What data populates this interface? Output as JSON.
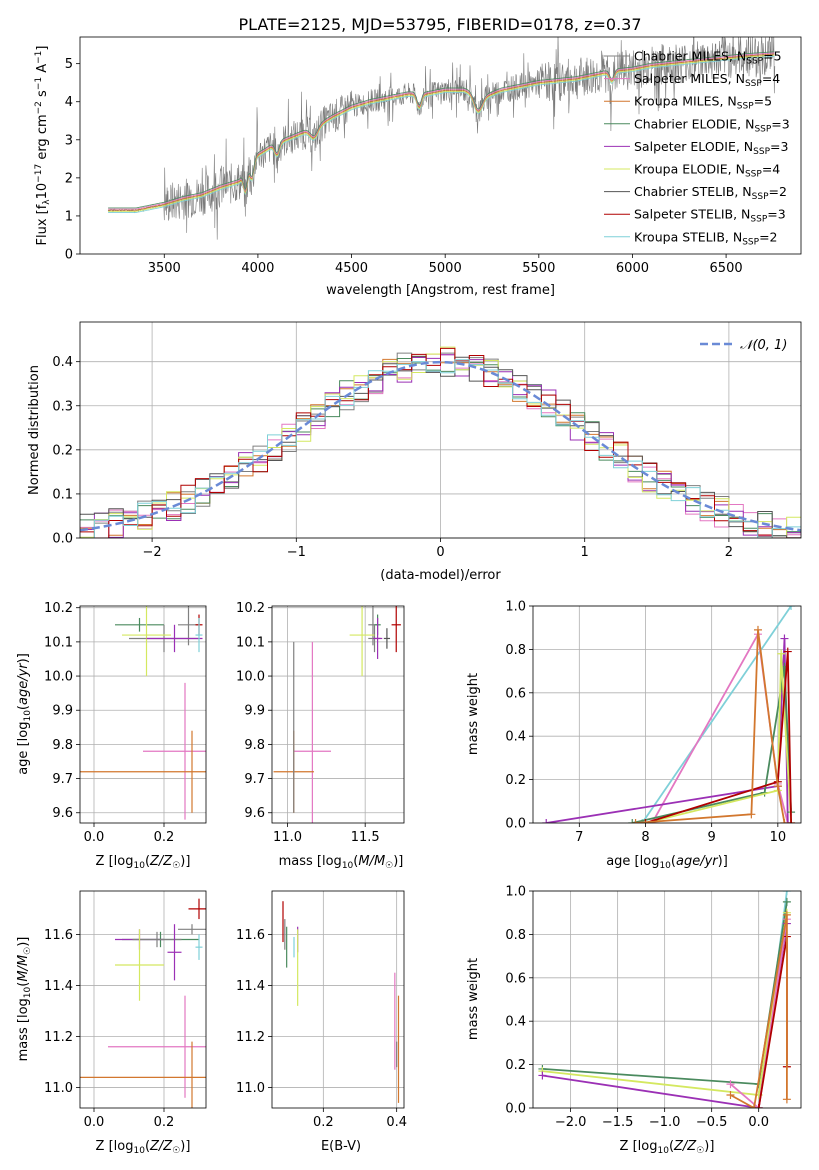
{
  "figure": {
    "title": "PLATE=2125, MJD=53795, FIBERID=0178, z=0.37"
  },
  "colors": {
    "Chabrier MILES": "#808080",
    "Salpeter MILES": "#e377c2",
    "Kroupa MILES": "#d2772e",
    "Chabrier ELODIE": "#4a8a5e",
    "Salpeter ELODIE": "#9b30b5",
    "Kroupa ELODIE": "#d4e860",
    "Chabrier STELIB": "#555555",
    "Salpeter STELIB": "#b00000",
    "Kroupa STELIB": "#7fd0d8",
    "gauss": "#6a8ad6"
  },
  "chart_data": [
    {
      "id": "spectrum",
      "type": "line",
      "title": "PLATE=2125, MJD=53795, FIBERID=0178, z=0.37",
      "xlabel": "wavelength [Angstrom, rest frame]",
      "ylabel": "Flux [f_λ 10^-17 erg cm^-2 s^-1 A^-1]",
      "xlim": [
        3050,
        6900
      ],
      "ylim": [
        0,
        5.7
      ],
      "xticks": [
        3500,
        4000,
        4500,
        5000,
        5500,
        6000,
        6500
      ],
      "yticks": [
        0,
        1,
        2,
        3,
        4,
        5
      ],
      "legend_position": "top-right",
      "legend": [
        {
          "label": "Chabrier MILES, N",
          "sub": "SSP",
          "suffix": "=5",
          "color": "#808080"
        },
        {
          "label": "Salpeter MILES, N",
          "sub": "SSP",
          "suffix": "=4",
          "color": "#e377c2"
        },
        {
          "label": "Kroupa MILES, N",
          "sub": "SSP",
          "suffix": "=5",
          "color": "#d2772e"
        },
        {
          "label": "Chabrier ELODIE, N",
          "sub": "SSP",
          "suffix": "=3",
          "color": "#4a8a5e"
        },
        {
          "label": "Salpeter ELODIE, N",
          "sub": "SSP",
          "suffix": "=3",
          "color": "#9b30b5"
        },
        {
          "label": "Kroupa ELODIE, N",
          "sub": "SSP",
          "suffix": "=4",
          "color": "#d4e860"
        },
        {
          "label": "Chabrier STELIB, N",
          "sub": "SSP",
          "suffix": "=2",
          "color": "#555555"
        },
        {
          "label": "Salpeter STELIB, N",
          "sub": "SSP",
          "suffix": "=3",
          "color": "#b00000"
        },
        {
          "label": "Kroupa STELIB, N",
          "sub": "SSP",
          "suffix": "=2",
          "color": "#7fd0d8"
        }
      ],
      "continuum": {
        "x": [
          3200,
          3350,
          3500,
          3600,
          3700,
          3800,
          3900,
          4000,
          4100,
          4200,
          4300,
          4400,
          4500,
          4600,
          4700,
          4800,
          4900,
          5000,
          5100,
          5200,
          5300,
          5400,
          5500,
          5600,
          5700,
          5800,
          5900,
          6000,
          6100,
          6200,
          6300,
          6400,
          6500,
          6600,
          6750
        ],
        "y": [
          1.15,
          1.15,
          1.3,
          1.45,
          1.55,
          1.75,
          1.9,
          2.6,
          2.9,
          3.1,
          3.3,
          3.6,
          3.85,
          4.0,
          4.1,
          4.2,
          4.2,
          4.3,
          4.3,
          4.1,
          4.3,
          4.4,
          4.5,
          4.55,
          4.6,
          4.7,
          4.8,
          4.85,
          4.95,
          5.0,
          5.05,
          5.1,
          5.15,
          5.2,
          5.25
        ]
      }
    },
    {
      "id": "residuals",
      "type": "bar",
      "xlabel": "(data-model)/error",
      "ylabel": "Normed distribution",
      "xlim": [
        -2.5,
        2.5
      ],
      "ylim": [
        0,
        0.49
      ],
      "xticks": [
        -2,
        -1,
        0,
        1,
        2
      ],
      "yticks": [
        0.0,
        0.1,
        0.2,
        0.3,
        0.4
      ],
      "legend_position": "top-right",
      "legend_label": "𝒩(0, 1)",
      "bin_width": 0.1
    },
    {
      "id": "age_vs_Z",
      "type": "scatter",
      "xlabel": "Z [log10(Z/Z☉)]",
      "ylabel": "age [log10(age/yr)]",
      "xlim": [
        -0.04,
        0.32
      ],
      "ylim": [
        9.57,
        10.205
      ],
      "xticks": [
        0.0,
        0.2
      ],
      "yticks": [
        9.6,
        9.7,
        9.8,
        9.9,
        10.0,
        10.1,
        10.2
      ],
      "points": [
        {
          "x": 0.27,
          "y": 10.15,
          "xerr": 0.03,
          "yerr": 0.06,
          "color": "#808080"
        },
        {
          "x": 0.13,
          "y": 10.15,
          "xerr": 0.07,
          "yerr": 0.02,
          "color": "#4a8a5e"
        },
        {
          "x": 0.2,
          "y": 10.11,
          "xerr": 0.1,
          "yerr": 0.04,
          "color": "#808080"
        },
        {
          "x": 0.15,
          "y": 10.12,
          "xerr": 0.07,
          "yerr": 0.12,
          "color": "#d4e860"
        },
        {
          "x": 0.23,
          "y": 10.11,
          "xerr": 0.08,
          "yerr": 0.04,
          "color": "#9b30b5"
        },
        {
          "x": 0.3,
          "y": 10.15,
          "xerr": 0.01,
          "yerr": 0.03,
          "color": "#b00000"
        },
        {
          "x": 0.3,
          "y": 10.12,
          "xerr": 0.01,
          "yerr": 0.05,
          "color": "#7fd0d8"
        },
        {
          "x": 0.26,
          "y": 9.78,
          "xerr": 0.12,
          "yerr": 0.2,
          "color": "#e377c2"
        },
        {
          "x": 0.28,
          "y": 9.72,
          "xerr": 0.32,
          "yerr": 0.12,
          "color": "#d2772e"
        }
      ]
    },
    {
      "id": "age_vs_mass",
      "type": "scatter",
      "xlabel": "mass [log10(M/M☉)]",
      "ylabel": "",
      "xlim": [
        10.9,
        11.75
      ],
      "ylim": [
        9.57,
        10.205
      ],
      "xticks": [
        11.0,
        11.5
      ],
      "yticks": [
        9.6,
        9.7,
        9.8,
        9.9,
        10.0,
        10.1,
        10.2
      ],
      "points": [
        {
          "x": 11.55,
          "y": 10.15,
          "xerr": 0.03,
          "yerr": 0.06,
          "color": "#808080"
        },
        {
          "x": 11.58,
          "y": 10.15,
          "xerr": 0.02,
          "yerr": 0.03,
          "color": "#4a8a5e"
        },
        {
          "x": 11.56,
          "y": 10.11,
          "xerr": 0.04,
          "yerr": 0.04,
          "color": "#808080"
        },
        {
          "x": 11.48,
          "y": 10.12,
          "xerr": 0.08,
          "yerr": 0.12,
          "color": "#d4e860"
        },
        {
          "x": 11.58,
          "y": 10.11,
          "xerr": 0.03,
          "yerr": 0.06,
          "color": "#9b30b5"
        },
        {
          "x": 11.7,
          "y": 10.15,
          "xerr": 0.03,
          "yerr": 0.08,
          "color": "#b00000"
        },
        {
          "x": 11.64,
          "y": 10.11,
          "xerr": 0.02,
          "yerr": 0.03,
          "color": "#555555"
        },
        {
          "x": 11.16,
          "y": 9.78,
          "xerr": 0.12,
          "yerr": 0.32,
          "color": "#e377c2"
        },
        {
          "x": 11.04,
          "y": 9.72,
          "xerr": 0.13,
          "yerr": 0.12,
          "color": "#d2772e"
        },
        {
          "x": 11.04,
          "y": 9.85,
          "xerr": 0.0,
          "yerr": 0.25,
          "color": "#808080"
        }
      ]
    },
    {
      "id": "massweight_vs_age",
      "type": "line",
      "xlabel": "age [log10(age/yr)]",
      "ylabel": "mass weight",
      "xlim": [
        6.3,
        10.35
      ],
      "ylim": [
        0,
        1.0
      ],
      "xticks": [
        7,
        8,
        9,
        10
      ],
      "yticks": [
        0.0,
        0.2,
        0.4,
        0.6,
        0.8,
        1.0
      ],
      "series": [
        {
          "color": "#7fd0d8",
          "x": [
            7.95,
            10.2
          ],
          "y": [
            0.0,
            1.0
          ]
        },
        {
          "color": "#e377c2",
          "x": [
            8.1,
            9.7,
            10.0,
            10.15
          ],
          "y": [
            0.0,
            0.87,
            0.18,
            0.0
          ]
        },
        {
          "color": "#9b30b5",
          "x": [
            6.5,
            10.0,
            10.1,
            10.15
          ],
          "y": [
            0.0,
            0.17,
            0.85,
            0.0
          ]
        },
        {
          "color": "#4a8a5e",
          "x": [
            7.8,
            9.8,
            10.1,
            10.2
          ],
          "y": [
            0.0,
            0.14,
            0.72,
            0.05
          ]
        },
        {
          "color": "#d4e860",
          "x": [
            8.0,
            10.0,
            10.05,
            10.2
          ],
          "y": [
            0.0,
            0.15,
            0.78,
            0.0
          ]
        },
        {
          "color": "#b00000",
          "x": [
            8.0,
            10.0,
            10.15,
            10.2
          ],
          "y": [
            0.0,
            0.19,
            0.79,
            0.0
          ]
        },
        {
          "color": "#d2772e",
          "x": [
            7.85,
            9.6,
            9.7,
            10.0,
            10.1
          ],
          "y": [
            0.0,
            0.04,
            0.89,
            0.17,
            0.0
          ]
        }
      ]
    },
    {
      "id": "mass_vs_Z",
      "type": "scatter",
      "xlabel": "Z [log10(Z/Z☉)]",
      "ylabel": "mass [log10(M/M☉)]",
      "xlim": [
        -0.04,
        0.32
      ],
      "ylim": [
        10.92,
        11.77
      ],
      "xticks": [
        0.0,
        0.2
      ],
      "yticks": [
        11.0,
        11.2,
        11.4,
        11.6
      ],
      "points": [
        {
          "x": 0.3,
          "y": 11.7,
          "xerr": 0.03,
          "yerr": 0.04,
          "color": "#b00000"
        },
        {
          "x": 0.28,
          "y": 11.62,
          "xerr": 0.04,
          "yerr": 0.02,
          "color": "#808080"
        },
        {
          "x": 0.19,
          "y": 11.58,
          "xerr": 0.11,
          "yerr": 0.03,
          "color": "#4a8a5e"
        },
        {
          "x": 0.13,
          "y": 11.58,
          "xerr": 0.07,
          "yerr": 0.04,
          "color": "#9b30b5"
        },
        {
          "x": 0.18,
          "y": 11.58,
          "xerr": 0.07,
          "yerr": 0.03,
          "color": "#808080"
        },
        {
          "x": 0.23,
          "y": 11.53,
          "xerr": 0.02,
          "yerr": 0.11,
          "color": "#9b30b5"
        },
        {
          "x": 0.3,
          "y": 11.55,
          "xerr": 0.01,
          "yerr": 0.05,
          "color": "#7fd0d8"
        },
        {
          "x": 0.13,
          "y": 11.48,
          "xerr": 0.07,
          "yerr": 0.14,
          "color": "#d4e860"
        },
        {
          "x": 0.26,
          "y": 11.16,
          "xerr": 0.22,
          "yerr": 0.2,
          "color": "#e377c2"
        },
        {
          "x": 0.14,
          "y": 11.04,
          "xerr": 0.18,
          "yerr": 0.0,
          "color": "#d2772e"
        },
        {
          "x": 0.28,
          "y": 11.04,
          "xerr": 0.0,
          "yerr": 0.14,
          "color": "#d2772e"
        }
      ]
    },
    {
      "id": "mass_vs_EBV",
      "type": "scatter",
      "xlabel": "E(B-V)",
      "ylabel": "",
      "xlim": [
        0.06,
        0.42
      ],
      "ylim": [
        10.92,
        11.77
      ],
      "xticks": [
        0.2,
        0.4
      ],
      "yticks": [
        11.0,
        11.2,
        11.4,
        11.6
      ],
      "points": [
        {
          "x": 0.09,
          "y": 11.65,
          "xerr": 0.0,
          "yerr": 0.08,
          "color": "#b00000"
        },
        {
          "x": 0.095,
          "y": 11.6,
          "xerr": 0.0,
          "yerr": 0.06,
          "color": "#808080"
        },
        {
          "x": 0.1,
          "y": 11.55,
          "xerr": 0.0,
          "yerr": 0.08,
          "color": "#4a8a5e"
        },
        {
          "x": 0.13,
          "y": 11.58,
          "xerr": 0.0,
          "yerr": 0.05,
          "color": "#9b30b5"
        },
        {
          "x": 0.13,
          "y": 11.47,
          "xerr": 0.0,
          "yerr": 0.15,
          "color": "#d4e860"
        },
        {
          "x": 0.12,
          "y": 11.55,
          "xerr": 0.0,
          "yerr": 0.04,
          "color": "#7fd0d8"
        },
        {
          "x": 0.395,
          "y": 11.26,
          "xerr": 0.0,
          "yerr": 0.19,
          "color": "#e377c2"
        },
        {
          "x": 0.405,
          "y": 11.15,
          "xerr": 0.0,
          "yerr": 0.21,
          "color": "#d2772e"
        },
        {
          "x": 0.4,
          "y": 11.13,
          "xerr": 0.0,
          "yerr": 0.05,
          "color": "#808080"
        }
      ]
    },
    {
      "id": "massweight_vs_Z",
      "type": "line",
      "xlabel": "Z [log10(Z/Z☉)]",
      "ylabel": "mass weight",
      "xlim": [
        -2.4,
        0.45
      ],
      "ylim": [
        0,
        1.0
      ],
      "xticks": [
        -2.0,
        -1.5,
        -1.0,
        -0.5,
        0.0
      ],
      "yticks": [
        0.0,
        0.2,
        0.4,
        0.6,
        0.8,
        1.0
      ],
      "series": [
        {
          "color": "#7fd0d8",
          "x": [
            0.0,
            0.3
          ],
          "y": [
            0.0,
            1.0
          ]
        },
        {
          "color": "#4a8a5e",
          "x": [
            -2.3,
            0.0,
            0.3
          ],
          "y": [
            0.18,
            0.11,
            0.95
          ]
        },
        {
          "color": "#d4e860",
          "x": [
            -2.3,
            0.0,
            0.3
          ],
          "y": [
            0.17,
            0.06,
            0.9
          ]
        },
        {
          "color": "#9b30b5",
          "x": [
            -2.3,
            0.0,
            0.3
          ],
          "y": [
            0.15,
            0.0,
            0.85
          ]
        },
        {
          "color": "#e377c2",
          "x": [
            -0.3,
            0.0,
            0.3
          ],
          "y": [
            0.11,
            0.0,
            0.87
          ]
        },
        {
          "color": "#b00000",
          "x": [
            0.0,
            0.3,
            0.3
          ],
          "y": [
            0.0,
            0.79,
            0.19
          ]
        },
        {
          "color": "#d2772e",
          "x": [
            -0.3,
            -0.05,
            0.3,
            0.3
          ],
          "y": [
            0.06,
            0.0,
            0.89,
            0.04
          ]
        }
      ]
    }
  ]
}
